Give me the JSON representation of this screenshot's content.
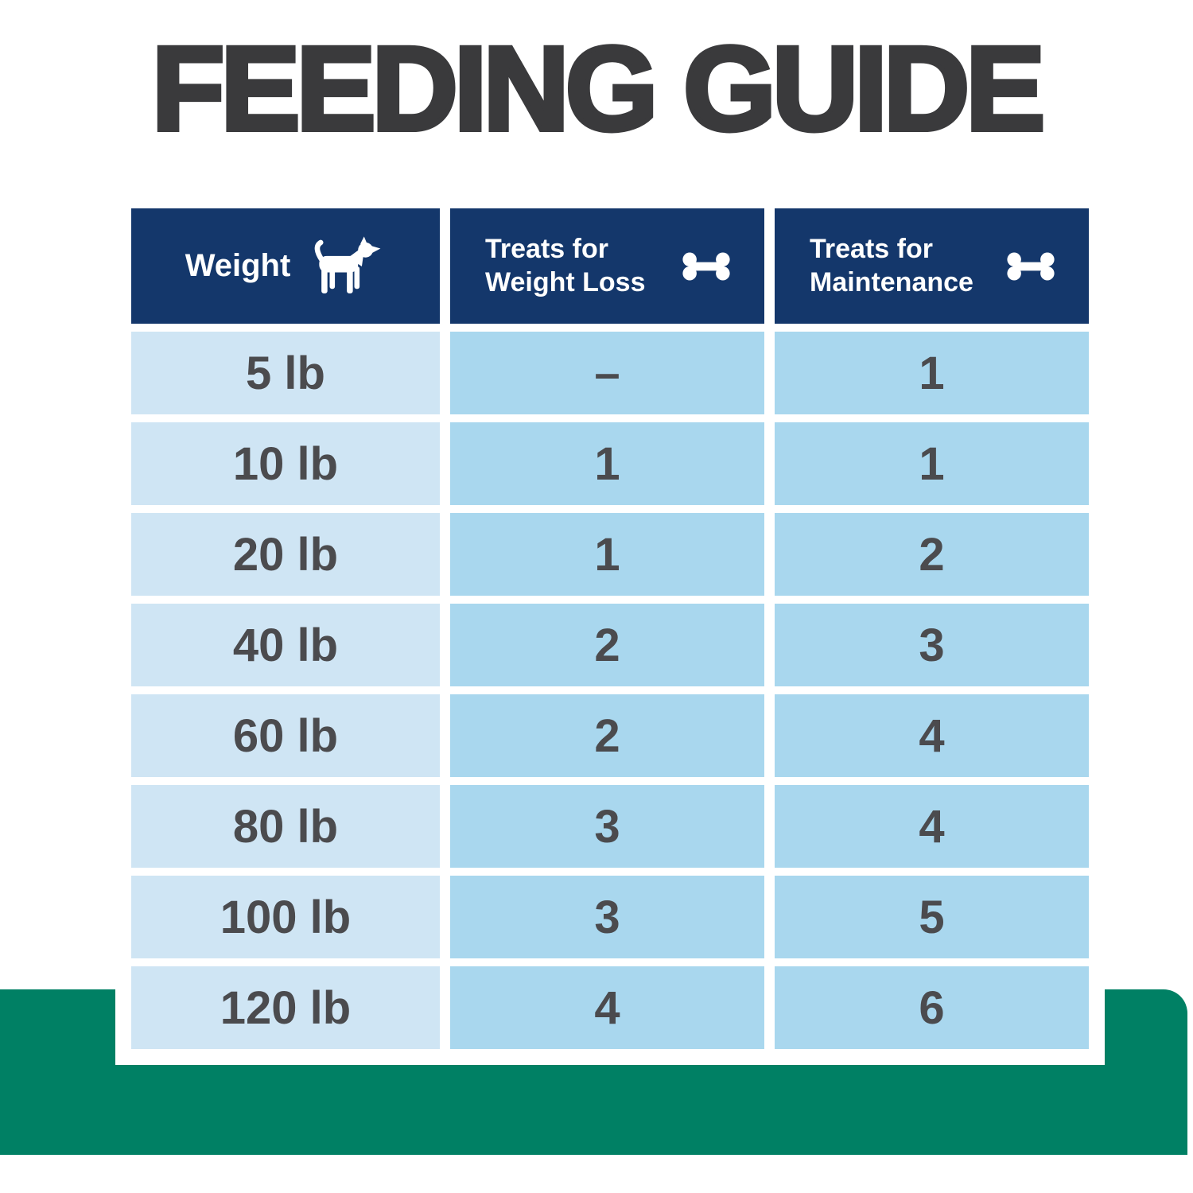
{
  "title": "FEEDING GUIDE",
  "header": {
    "col1": {
      "label": "Weight",
      "icon": "dog-icon"
    },
    "col2": {
      "line1": "Treats for",
      "line2": "Weight Loss",
      "icon": "bone-icon"
    },
    "col3": {
      "line1": "Treats for",
      "line2": "Maintenance",
      "icon": "bone-icon"
    }
  },
  "chart_data": {
    "type": "table",
    "title": "FEEDING GUIDE",
    "columns": [
      "Weight",
      "Treats for Weight Loss",
      "Treats for Maintenance"
    ],
    "rows": [
      [
        "5 lb",
        "–",
        "1"
      ],
      [
        "10 lb",
        "1",
        "1"
      ],
      [
        "20 lb",
        "1",
        "2"
      ],
      [
        "40 lb",
        "2",
        "3"
      ],
      [
        "60 lb",
        "2",
        "4"
      ],
      [
        "80 lb",
        "3",
        "4"
      ],
      [
        "100 lb",
        "3",
        "5"
      ],
      [
        "120 lb",
        "4",
        "6"
      ]
    ]
  },
  "colors": {
    "header_navy": "#14376b",
    "row_light": "#cfe5f4",
    "row_mid": "#a9d7ee",
    "band_green": "#008064",
    "title_charcoal": "#3a3a3c",
    "cell_text": "#4b4b4e"
  }
}
